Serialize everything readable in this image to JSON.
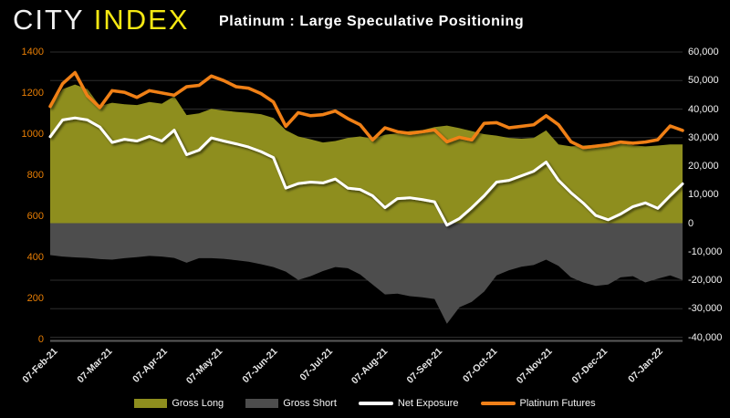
{
  "header": {
    "logo_city": "CITY",
    "logo_index": "INDEX",
    "title": "Platinum : Large Speculative Positioning"
  },
  "colors": {
    "background": "#000000",
    "logo_city": "#f0f0f0",
    "logo_index": "#f5e813",
    "gross_long": "#8e8e1e",
    "gross_short": "#4d4d4d",
    "net_exposure": "#ffffff",
    "platinum_futures": "#f08019",
    "left_axis_text": "#e87e04",
    "right_axis_text": "#f2f2f2",
    "gridline": "#2e2e2e",
    "baseline": "#5a5a5a"
  },
  "legend": [
    {
      "label": "Gross Long",
      "kind": "area",
      "color": "#8e8e1e"
    },
    {
      "label": "Gross Short",
      "kind": "area",
      "color": "#4d4d4d"
    },
    {
      "label": "Net Exposure",
      "kind": "line",
      "color": "#ffffff"
    },
    {
      "label": "Platinum Futures",
      "kind": "line",
      "color": "#f08019"
    }
  ],
  "chart_data": {
    "type": "area",
    "title": "Platinum : Large Speculative Positioning",
    "grid": "horizontal",
    "legend_position": "bottom",
    "x_labels": [
      "07-Feb-21",
      "07-Mar-21",
      "07-Apr-21",
      "07-May-21",
      "07-Jun-21",
      "07-Jul-21",
      "07-Aug-21",
      "07-Sep-21",
      "07-Oct-21",
      "07-Nov-21",
      "07-Dec-21",
      "07-Jan-22"
    ],
    "left_axis": {
      "labels": [
        "1400",
        "1200",
        "1000",
        "800",
        "600",
        "400",
        "200",
        "0"
      ],
      "values": [
        1400,
        1200,
        1000,
        800,
        600,
        400,
        200,
        0
      ],
      "min": 0,
      "max": 1400
    },
    "right_axis": {
      "labels": [
        "60,000",
        "50,000",
        "40,000",
        "30,000",
        "20,000",
        "10,000",
        "0",
        "-10,000",
        "-20,000",
        "-30,000",
        "-40,000"
      ],
      "values": [
        60000,
        50000,
        40000,
        30000,
        20000,
        10000,
        0,
        -10000,
        -20000,
        -30000,
        -40000
      ],
      "min": -40000,
      "max": 60000
    },
    "series": [
      {
        "name": "Gross Long",
        "type": "area",
        "axis": "right",
        "color": "#8e8e1e",
        "values": [
          40600,
          47000,
          48600,
          47000,
          41100,
          42200,
          41700,
          41400,
          42500,
          41900,
          44500,
          37900,
          38500,
          40100,
          39500,
          39000,
          38700,
          38200,
          36900,
          32600,
          30400,
          29400,
          28300,
          28800,
          29900,
          30400,
          29600,
          31000,
          31500,
          32300,
          32600,
          33700,
          34200,
          33300,
          32300,
          31200,
          30700,
          29900,
          29600,
          29900,
          32500,
          27600,
          26900,
          27200,
          27500,
          27900,
          28500,
          27300,
          26900,
          27200,
          27600,
          27600
        ]
      },
      {
        "name": "Gross Short",
        "type": "area",
        "axis": "right",
        "color": "#4d4d4d",
        "values": [
          -11200,
          -11700,
          -12000,
          -12200,
          -12600,
          -12800,
          -12300,
          -11900,
          -11500,
          -11700,
          -12200,
          -13900,
          -12300,
          -12300,
          -12500,
          -13000,
          -13500,
          -14400,
          -15400,
          -17000,
          -19900,
          -18600,
          -16800,
          -15400,
          -15800,
          -18000,
          -21500,
          -25000,
          -24700,
          -25600,
          -26000,
          -26600,
          -35300,
          -29500,
          -27600,
          -24000,
          -18300,
          -16500,
          -15300,
          -14700,
          -12800,
          -15000,
          -19000,
          -20800,
          -22000,
          -21500,
          -19000,
          -18600,
          -20800,
          -19500,
          -18300,
          -19900
        ]
      },
      {
        "name": "Net Exposure",
        "type": "line",
        "axis": "right",
        "color": "#ffffff",
        "values": [
          30300,
          36200,
          36900,
          36200,
          33700,
          28300,
          29400,
          28800,
          30400,
          28800,
          32600,
          24000,
          25600,
          29900,
          28800,
          27800,
          26700,
          25100,
          23000,
          12300,
          13900,
          14400,
          14100,
          15500,
          12300,
          11800,
          9600,
          5400,
          8600,
          8900,
          8300,
          7500,
          -700,
          1600,
          5400,
          9600,
          14400,
          15000,
          16600,
          18200,
          21400,
          15000,
          10700,
          7000,
          2700,
          1200,
          3200,
          5800,
          7100,
          5200,
          9600,
          13800
        ]
      },
      {
        "name": "Platinum Futures",
        "type": "line",
        "axis": "left",
        "color": "#f08019",
        "values": [
          1135,
          1246,
          1300,
          1187,
          1130,
          1212,
          1204,
          1179,
          1212,
          1201,
          1190,
          1231,
          1238,
          1283,
          1261,
          1231,
          1224,
          1198,
          1157,
          1038,
          1105,
          1090,
          1095,
          1113,
          1076,
          1046,
          972,
          1031,
          1012,
          1004,
          1012,
          1021,
          963,
          985,
          972,
          1053,
          1056,
          1031,
          1038,
          1046,
          1090,
          1046,
          963,
          934,
          942,
          949,
          962,
          956,
          962,
          973,
          1040,
          1018
        ]
      }
    ]
  }
}
